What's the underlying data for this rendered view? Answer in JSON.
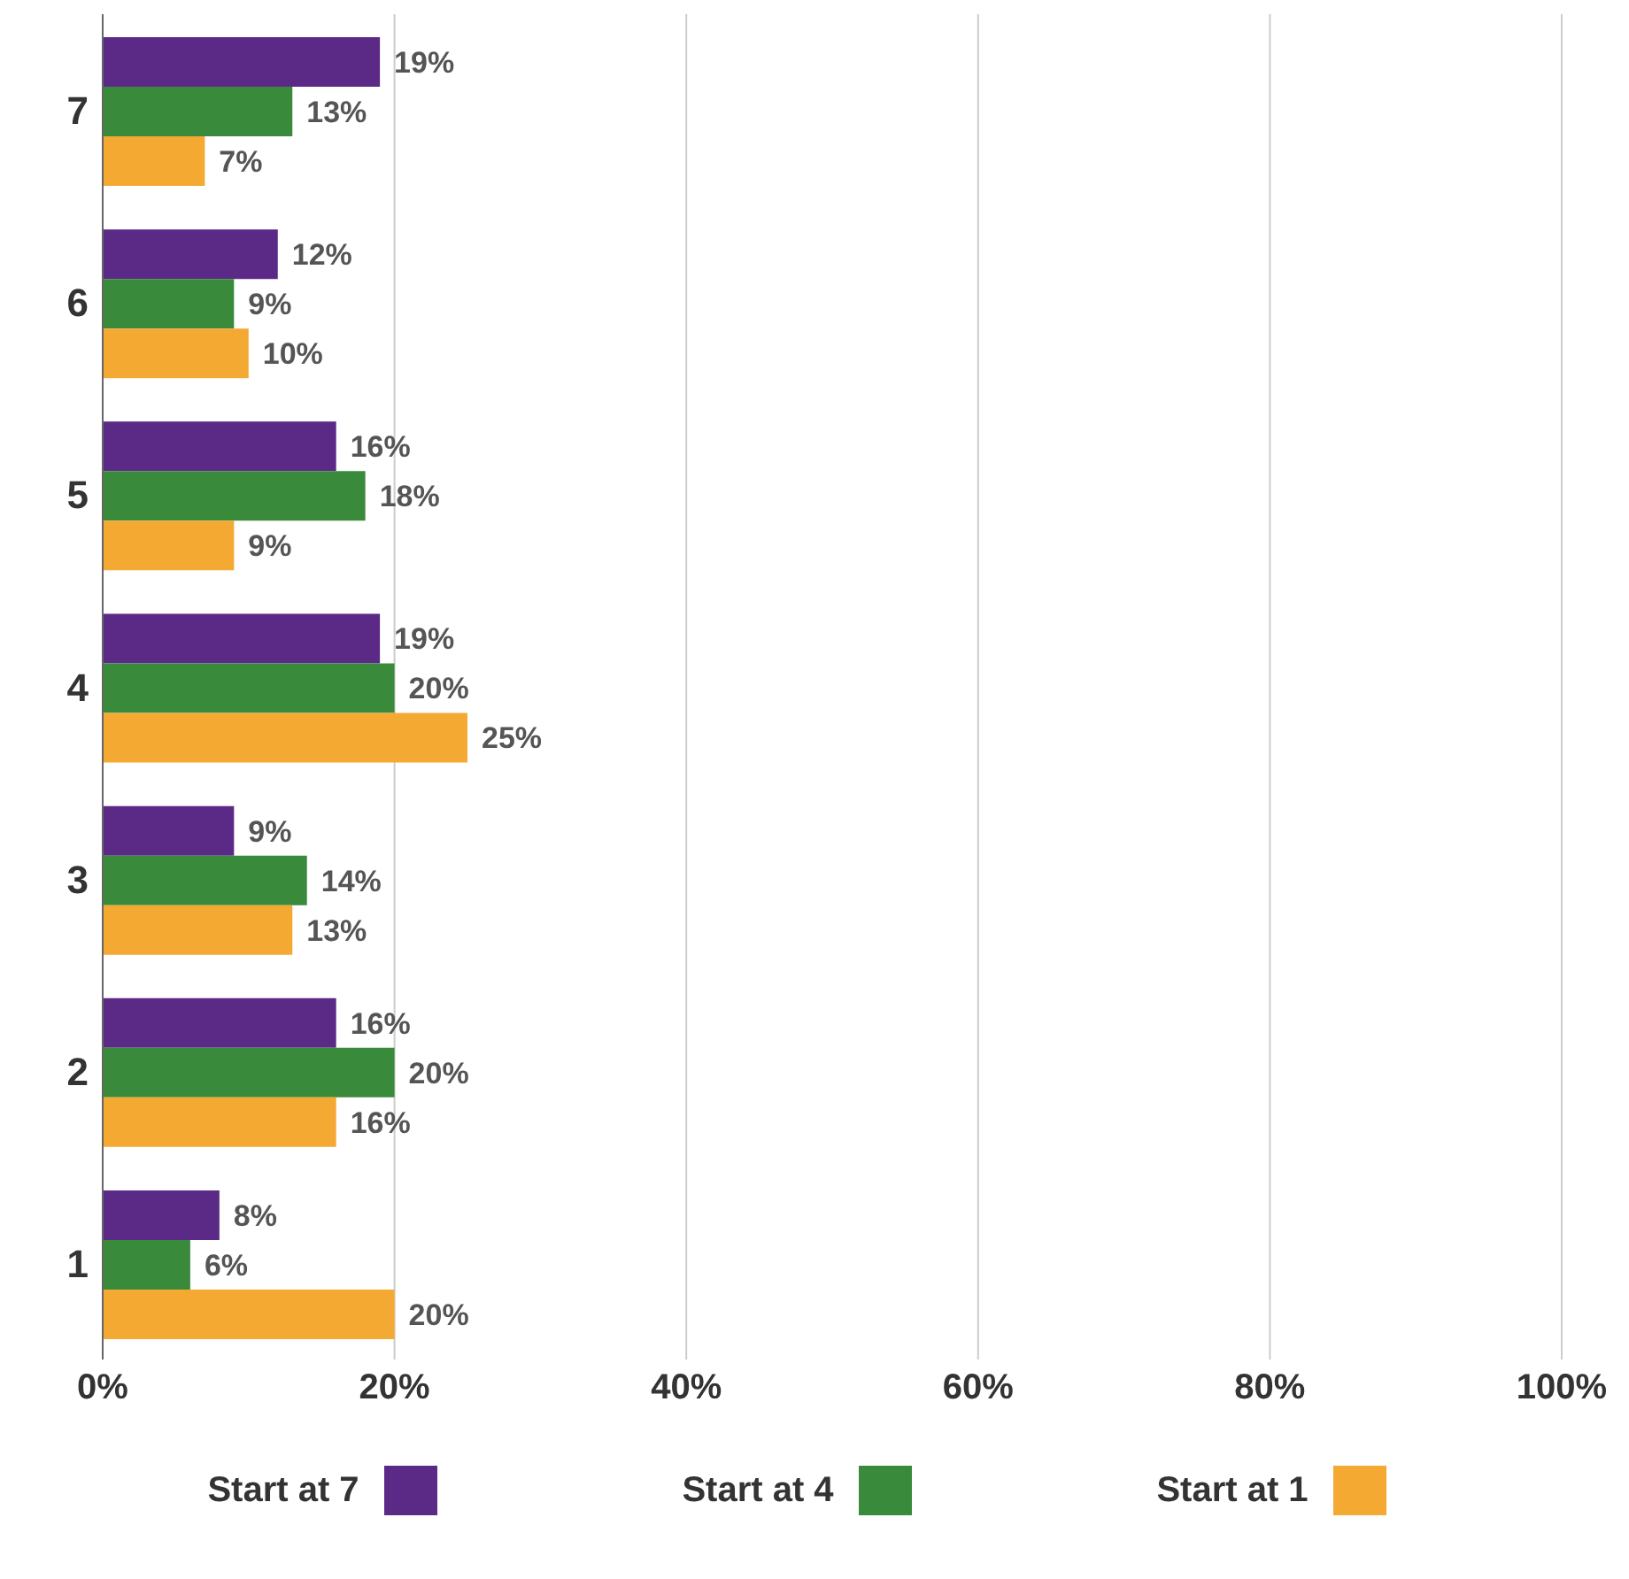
{
  "chart_data": {
    "type": "bar",
    "orientation": "horizontal",
    "categories": [
      "7",
      "6",
      "5",
      "4",
      "3",
      "2",
      "1"
    ],
    "series": [
      {
        "name": "Start at 7",
        "color": "#5b2a86",
        "values": [
          19,
          12,
          16,
          19,
          9,
          16,
          8
        ],
        "value_labels": [
          "19%",
          "12%",
          "16%",
          "19%",
          "9%",
          "16%",
          "8%"
        ]
      },
      {
        "name": "Start at 4",
        "color": "#3a8a3c",
        "values": [
          13,
          9,
          18,
          20,
          14,
          20,
          6
        ],
        "value_labels": [
          "13%",
          "9%",
          "18%",
          "20%",
          "14%",
          "20%",
          "6%"
        ]
      },
      {
        "name": "Start at 1",
        "color": "#f3a932",
        "values": [
          7,
          10,
          9,
          25,
          13,
          16,
          20
        ],
        "value_labels": [
          "7%",
          "10%",
          "9%",
          "25%",
          "13%",
          "16%",
          "20%"
        ]
      }
    ],
    "xlim": [
      0,
      100
    ],
    "xticks": [
      {
        "value": 0,
        "label": "0%"
      },
      {
        "value": 20,
        "label": "20%"
      },
      {
        "value": 40,
        "label": "40%"
      },
      {
        "value": 60,
        "label": "60%"
      },
      {
        "value": 80,
        "label": "80%"
      },
      {
        "value": 100,
        "label": "100%"
      }
    ],
    "grid": "x",
    "legend": "bottom"
  }
}
